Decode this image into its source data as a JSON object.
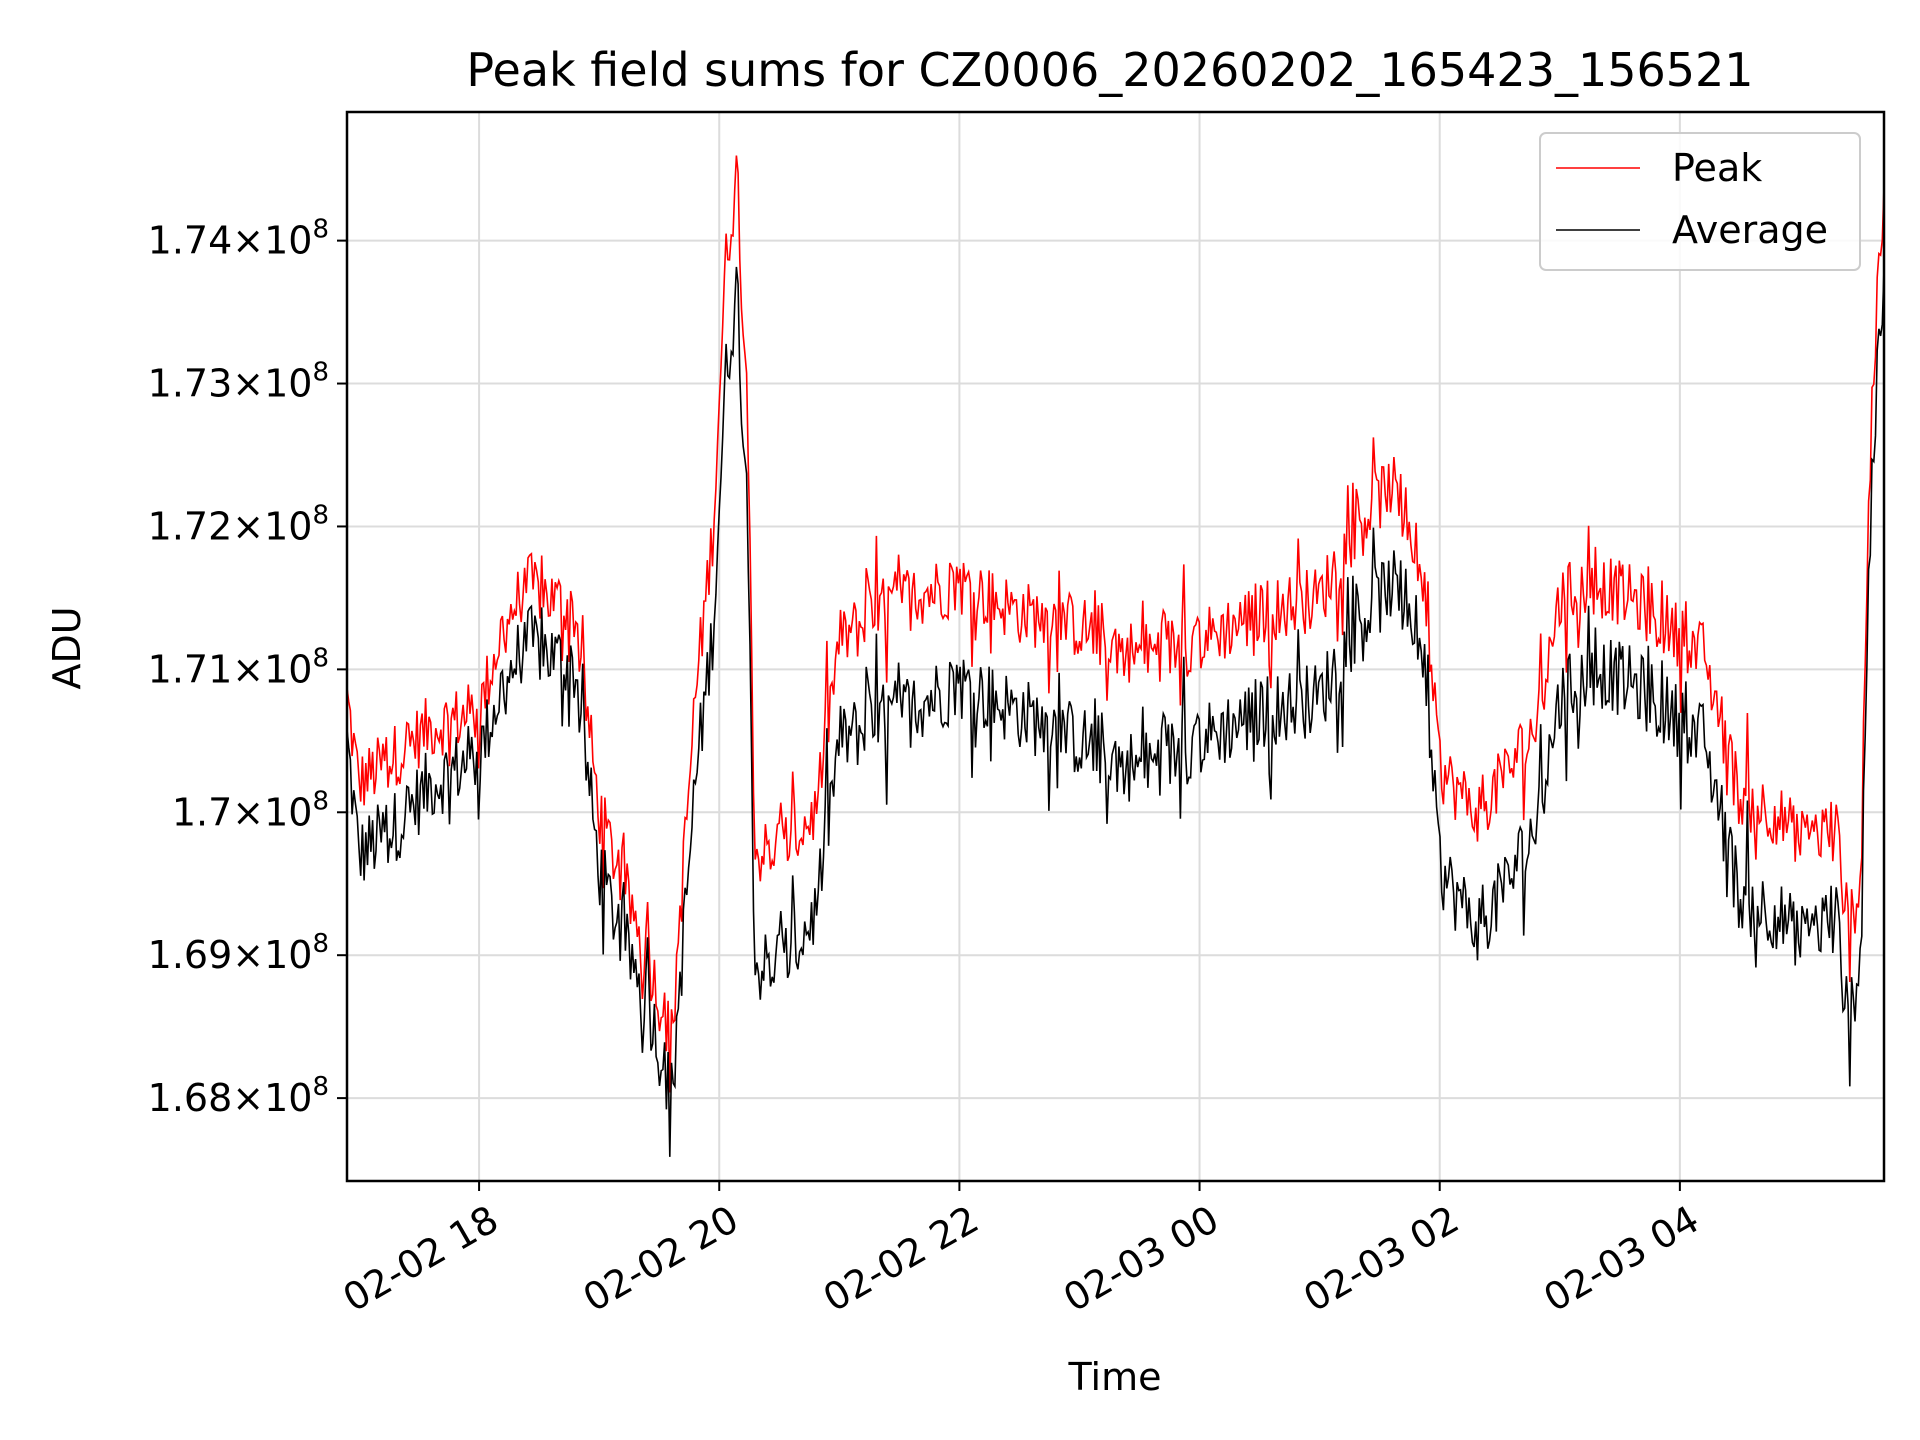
{
  "chart_data": {
    "type": "line",
    "title": "Peak field sums for CZ0006_20260202_165423_156521",
    "xlabel": "Time",
    "ylabel": "ADU",
    "grid": true,
    "legend_position": "top-right",
    "xlim_hours": [
      -0.1,
      12.7
    ],
    "ylim": [
      167420000,
      174900000
    ],
    "x_ticks": [
      {
        "hours": 1,
        "label": "02-02 18"
      },
      {
        "hours": 3,
        "label": "02-02 20"
      },
      {
        "hours": 5,
        "label": "02-02 22"
      },
      {
        "hours": 7,
        "label": "02-03 00"
      },
      {
        "hours": 9,
        "label": "02-03 02"
      },
      {
        "hours": 11,
        "label": "02-03 04"
      }
    ],
    "y_ticks": [
      {
        "value": 174000000,
        "mantissa": "1.74",
        "exponent": "8"
      },
      {
        "value": 173000000,
        "mantissa": "1.73",
        "exponent": "8"
      },
      {
        "value": 172000000,
        "mantissa": "1.72",
        "exponent": "8"
      },
      {
        "value": 171000000,
        "mantissa": "1.71",
        "exponent": "8"
      },
      {
        "value": 170000000,
        "mantissa": "1.7",
        "exponent": "8"
      },
      {
        "value": 169000000,
        "mantissa": "1.69",
        "exponent": "8"
      },
      {
        "value": 168000000,
        "mantissa": "1.68",
        "exponent": "8"
      }
    ],
    "y_tick_times": "×",
    "y_tick_base": "10",
    "series": [
      {
        "name": "Peak",
        "color": "#ff0000",
        "x_hours": [
          -0.1,
          0.0,
          0.3,
          0.6,
          1.0,
          1.2,
          1.4,
          1.8,
          2.0,
          2.2,
          2.4,
          2.6,
          2.8,
          2.95,
          3.05,
          3.15,
          3.25,
          3.3,
          3.6,
          3.8,
          4.0,
          4.5,
          5.0,
          5.5,
          6.0,
          6.5,
          7.0,
          7.5,
          8.0,
          8.3,
          8.6,
          8.85,
          9.0,
          9.3,
          9.5,
          9.8,
          10.0,
          10.3,
          10.6,
          10.9,
          11.2,
          11.5,
          11.8,
          12.0,
          12.3,
          12.4,
          12.5,
          12.6,
          12.7
        ],
        "values": [
          170800000,
          170200000,
          170400000,
          170600000,
          170700000,
          171300000,
          171600000,
          171400000,
          170000000,
          169500000,
          169000000,
          168400000,
          170800000,
          172000000,
          173800000,
          174500000,
          172500000,
          169700000,
          169800000,
          170000000,
          171200000,
          171500000,
          171600000,
          171400000,
          171300000,
          171100000,
          171200000,
          171400000,
          171500000,
          172000000,
          172300000,
          171700000,
          170300000,
          170000000,
          170200000,
          170600000,
          171500000,
          171600000,
          171500000,
          171300000,
          171100000,
          170100000,
          170000000,
          169800000,
          169900000,
          169200000,
          169500000,
          173000000,
          174200000
        ]
      },
      {
        "name": "Average",
        "color": "#000000",
        "x_hours": [
          -0.1,
          0.0,
          0.3,
          0.6,
          1.0,
          1.2,
          1.4,
          1.8,
          2.0,
          2.2,
          2.4,
          2.6,
          2.8,
          2.95,
          3.05,
          3.15,
          3.25,
          3.3,
          3.6,
          3.8,
          4.0,
          4.5,
          5.0,
          5.5,
          6.0,
          6.5,
          7.0,
          7.5,
          8.0,
          8.3,
          8.6,
          8.85,
          9.0,
          9.3,
          9.5,
          9.8,
          10.0,
          10.3,
          10.6,
          10.9,
          11.2,
          11.5,
          11.8,
          12.0,
          12.3,
          12.4,
          12.5,
          12.6,
          12.7
        ],
        "values": [
          170500000,
          169700000,
          169900000,
          170200000,
          170400000,
          170900000,
          171200000,
          171000000,
          169600000,
          169100000,
          168700000,
          168000000,
          170200000,
          171300000,
          173000000,
          173700000,
          171800000,
          168900000,
          169000000,
          169300000,
          170500000,
          170700000,
          170900000,
          170700000,
          170500000,
          170300000,
          170500000,
          170700000,
          170800000,
          171300000,
          171600000,
          171200000,
          169600000,
          169200000,
          169400000,
          169900000,
          170800000,
          171000000,
          170900000,
          170700000,
          170500000,
          169400000,
          169300000,
          169100000,
          169300000,
          168500000,
          169000000,
          172500000,
          173600000
        ]
      }
    ]
  }
}
